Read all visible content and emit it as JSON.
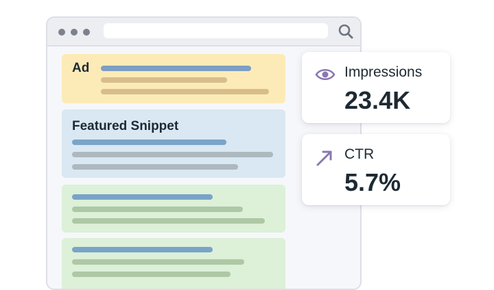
{
  "browser": {
    "window_controls": [
      "dot",
      "dot",
      "dot"
    ],
    "search_icon": "search-icon"
  },
  "results": {
    "ad": {
      "title": "Ad"
    },
    "snippet": {
      "title": "Featured Snippet"
    }
  },
  "metrics": [
    {
      "label": "Impressions",
      "value": "23.4K",
      "icon": "eye-icon"
    },
    {
      "label": "CTR",
      "value": "5.7%",
      "icon": "arrow-up-right-icon"
    }
  ],
  "colors": {
    "accent_icon": "#8a78b0",
    "ad_bg": "#fcebb6",
    "snippet_bg": "#d9e8f2",
    "organic_bg": "#ddf0d8",
    "text": "#1e2a33"
  }
}
